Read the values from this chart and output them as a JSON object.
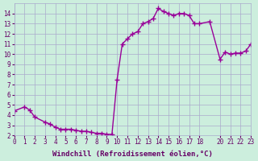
{
  "x": [
    0,
    1,
    1.5,
    2,
    3,
    3.5,
    4,
    4.5,
    5,
    5.5,
    6,
    6.5,
    7,
    7.5,
    8,
    8.5,
    9,
    9.5,
    10,
    10.5,
    11,
    11.5,
    12,
    12.5,
    13,
    13.5,
    14,
    14.5,
    15,
    15.5,
    16,
    16.5,
    17,
    17.5,
    18,
    19,
    20,
    20.5,
    21,
    21.5,
    22,
    22.5,
    23
  ],
  "y": [
    4.4,
    4.8,
    4.5,
    3.8,
    3.3,
    3.1,
    2.8,
    2.6,
    2.6,
    2.6,
    2.5,
    2.4,
    2.4,
    2.3,
    2.2,
    2.2,
    2.1,
    2.1,
    7.5,
    11.0,
    11.5,
    12.0,
    12.2,
    13.0,
    13.2,
    13.5,
    14.5,
    14.2,
    14.0,
    13.8,
    14.0,
    14.0,
    13.8,
    13.0,
    13.0,
    13.2,
    9.5,
    10.2,
    10.0,
    10.1,
    10.1,
    10.3,
    11.0
  ],
  "line_color": "#990099",
  "marker": "+",
  "markersize": 4,
  "linewidth": 1.0,
  "xlim": [
    0,
    23
  ],
  "ylim": [
    2,
    15
  ],
  "yticks": [
    2,
    3,
    4,
    5,
    6,
    7,
    8,
    9,
    10,
    11,
    12,
    13,
    14
  ],
  "xticks": [
    0,
    1,
    2,
    3,
    4,
    5,
    6,
    7,
    8,
    9,
    10,
    11,
    12,
    13,
    14,
    15,
    16,
    17,
    18,
    20,
    21,
    22,
    23
  ],
  "xtick_labels": [
    "0",
    "1",
    "2",
    "3",
    "4",
    "5",
    "6",
    "7",
    "8",
    "9",
    "10",
    "11",
    "12",
    "13",
    "14",
    "15",
    "16",
    "17",
    "18",
    "20",
    "21",
    "22",
    "23"
  ],
  "xlabel": "Windchill (Refroidissement éolien,°C)",
  "bg_color": "#cceedd",
  "grid_color": "#aaaacc",
  "tick_color": "#660066",
  "label_color": "#660066",
  "tick_fontsize": 5.5,
  "xlabel_fontsize": 6.5
}
